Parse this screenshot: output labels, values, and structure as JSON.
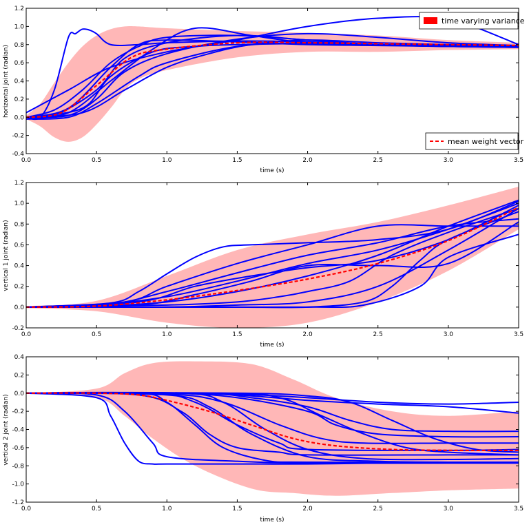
{
  "colors": {
    "trajectory": "#0000ff",
    "variance": "#ffb3b3",
    "variance_legend": "#ff0000",
    "mean": "#ff0000"
  },
  "legend": {
    "variance_label": "time varying variance",
    "mean_label": "mean weight vector"
  },
  "chart_data": [
    {
      "type": "line",
      "ylabel": "horizontal joint (radian)",
      "xlabel": "time (s)",
      "xlim": [
        0,
        3.5
      ],
      "ylim": [
        -0.4,
        1.2
      ],
      "xticks": [
        "0.0",
        "0.5",
        "1.0",
        "1.5",
        "2.0",
        "2.5",
        "3.0",
        "3.5"
      ],
      "yticks": [
        "-0.4",
        "-0.2",
        "0.0",
        "0.2",
        "0.4",
        "0.6",
        "0.8",
        "1.0",
        "1.2"
      ],
      "legend_entries": [
        "time varying variance",
        "mean weight vector"
      ],
      "legend_positions": [
        "top-right",
        "bottom-right"
      ],
      "grid": false,
      "mean": {
        "x": [
          0,
          0.25,
          0.5,
          0.75,
          1.0,
          1.5,
          2.0,
          2.5,
          3.0,
          3.5
        ],
        "y": [
          0.0,
          0.05,
          0.35,
          0.66,
          0.75,
          0.82,
          0.82,
          0.81,
          0.8,
          0.79
        ]
      },
      "variance_band": {
        "x": [
          0,
          0.1,
          0.2,
          0.3,
          0.4,
          0.5,
          0.6,
          0.7,
          0.8,
          1.0,
          1.5,
          2.0,
          2.5,
          3.0,
          3.5
        ],
        "upper": [
          0.02,
          0.15,
          0.38,
          0.6,
          0.78,
          0.9,
          0.97,
          1.0,
          1.0,
          0.98,
          0.95,
          0.93,
          0.9,
          0.85,
          0.82
        ],
        "lower": [
          -0.02,
          -0.1,
          -0.22,
          -0.27,
          -0.22,
          -0.08,
          0.1,
          0.3,
          0.42,
          0.52,
          0.66,
          0.72,
          0.72,
          0.74,
          0.75
        ]
      },
      "trajectories": [
        {
          "x": [
            0,
            0.1,
            0.2,
            0.3,
            0.35,
            0.4,
            0.45,
            0.5,
            0.6,
            0.8,
            1.0,
            1.5,
            2.0,
            2.5,
            3.0,
            3.5
          ],
          "y": [
            0,
            0.0,
            0.3,
            0.88,
            0.92,
            0.97,
            0.96,
            0.92,
            0.8,
            0.8,
            0.82,
            0.84,
            0.83,
            0.8,
            0.78,
            0.78
          ]
        },
        {
          "x": [
            0,
            0.3,
            0.6,
            1.0,
            1.5,
            2.0,
            2.5,
            3.0,
            3.5
          ],
          "y": [
            0.05,
            0.3,
            0.55,
            0.72,
            0.85,
            1.0,
            1.09,
            1.08,
            0.8
          ]
        },
        {
          "x": [
            0,
            0.2,
            0.5,
            0.7,
            1.0,
            1.5,
            2.0,
            2.5,
            3.0,
            3.5
          ],
          "y": [
            0,
            0.02,
            0.3,
            0.65,
            0.82,
            0.9,
            0.85,
            0.8,
            0.78,
            0.77
          ]
        },
        {
          "x": [
            0,
            0.3,
            0.6,
            0.9,
            1.2,
            1.6,
            2.0,
            2.5,
            3.0,
            3.5
          ],
          "y": [
            0,
            0.05,
            0.4,
            0.75,
            0.98,
            0.9,
            0.82,
            0.8,
            0.8,
            0.78
          ]
        },
        {
          "x": [
            0,
            0.3,
            0.5,
            0.8,
            1.0,
            1.5,
            2.0,
            2.5,
            3.0,
            3.5
          ],
          "y": [
            -0.02,
            0.0,
            0.15,
            0.45,
            0.6,
            0.78,
            0.82,
            0.8,
            0.79,
            0.78
          ]
        },
        {
          "x": [
            0,
            0.3,
            0.6,
            0.8,
            1.0,
            1.5,
            2.0,
            2.5,
            3.0,
            3.5
          ],
          "y": [
            0,
            0.1,
            0.55,
            0.8,
            0.85,
            0.83,
            0.8,
            0.79,
            0.78,
            0.78
          ]
        },
        {
          "x": [
            0,
            0.4,
            0.7,
            1.0,
            1.3,
            1.6,
            2.0,
            2.5,
            3.0,
            3.5
          ],
          "y": [
            0,
            0.05,
            0.3,
            0.55,
            0.7,
            0.8,
            0.85,
            0.82,
            0.8,
            0.79
          ]
        },
        {
          "x": [
            0,
            0.2,
            0.4,
            0.6,
            0.8,
            1.0,
            1.5,
            2.0,
            2.5,
            3.0,
            3.5
          ],
          "y": [
            0,
            0.08,
            0.3,
            0.6,
            0.78,
            0.88,
            0.9,
            0.85,
            0.8,
            0.78,
            0.78
          ]
        },
        {
          "x": [
            0,
            0.3,
            0.5,
            0.7,
            1.0,
            1.5,
            2.0,
            2.5,
            3.0,
            3.5
          ],
          "y": [
            0,
            0.02,
            0.2,
            0.5,
            0.7,
            0.86,
            0.92,
            0.88,
            0.82,
            0.79
          ]
        },
        {
          "x": [
            0,
            0.4,
            0.6,
            0.9,
            1.2,
            1.5,
            2.0,
            2.5,
            3.0,
            3.5
          ],
          "y": [
            0,
            0.1,
            0.45,
            0.72,
            0.78,
            0.8,
            0.81,
            0.8,
            0.78,
            0.77
          ]
        }
      ]
    },
    {
      "type": "line",
      "ylabel": "vertical 1 joint (radian)",
      "xlabel": "time (s)",
      "xlim": [
        0,
        3.5
      ],
      "ylim": [
        -0.2,
        1.2
      ],
      "xticks": [
        "0.0",
        "0.5",
        "1.0",
        "1.5",
        "2.0",
        "2.5",
        "3.0",
        "3.5"
      ],
      "yticks": [
        "-0.2",
        "0.0",
        "0.2",
        "0.4",
        "0.6",
        "0.8",
        "1.0",
        "1.2"
      ],
      "grid": false,
      "mean": {
        "x": [
          0,
          0.5,
          1.0,
          1.5,
          2.0,
          2.5,
          3.0,
          3.5
        ],
        "y": [
          0,
          0.01,
          0.07,
          0.16,
          0.27,
          0.42,
          0.64,
          0.96
        ]
      },
      "variance_band": {
        "x": [
          0,
          0.5,
          1.0,
          1.5,
          2.0,
          2.5,
          3.0,
          3.5
        ],
        "upper": [
          0.01,
          0.06,
          0.3,
          0.55,
          0.7,
          0.82,
          0.98,
          1.16
        ],
        "lower": [
          -0.01,
          -0.04,
          -0.15,
          -0.2,
          -0.15,
          0.05,
          0.35,
          0.75
        ]
      },
      "trajectories": [
        {
          "x": [
            0,
            0.6,
            0.8,
            1.0,
            1.2,
            1.4,
            1.6,
            2.0,
            2.5,
            3.0,
            3.5
          ],
          "y": [
            0,
            0.04,
            0.15,
            0.32,
            0.48,
            0.58,
            0.6,
            0.62,
            0.65,
            0.75,
            1.02
          ]
        },
        {
          "x": [
            0,
            0.7,
            1.0,
            1.5,
            2.0,
            2.5,
            3.0,
            3.5
          ],
          "y": [
            0,
            0.05,
            0.2,
            0.42,
            0.6,
            0.78,
            0.78,
            0.78
          ]
        },
        {
          "x": [
            0,
            0.5,
            1.0,
            1.5,
            2.0,
            2.5,
            3.0,
            3.5
          ],
          "y": [
            0,
            0.02,
            0.1,
            0.25,
            0.42,
            0.55,
            0.75,
            1.0
          ]
        },
        {
          "x": [
            0,
            0.5,
            1.0,
            1.5,
            2.0,
            2.5,
            3.0,
            3.5
          ],
          "y": [
            0,
            0.01,
            0.05,
            0.15,
            0.3,
            0.5,
            0.78,
            1.03
          ]
        },
        {
          "x": [
            0,
            0.5,
            1.0,
            1.5,
            2.0,
            2.5,
            3.0,
            3.5
          ],
          "y": [
            0,
            0.0,
            0.0,
            0.02,
            0.05,
            0.2,
            0.55,
            0.95
          ]
        },
        {
          "x": [
            0,
            1.0,
            1.5,
            2.0,
            2.4,
            2.6,
            2.8,
            3.0,
            3.5
          ],
          "y": [
            0,
            0.0,
            0.0,
            0.0,
            0.05,
            0.2,
            0.45,
            0.65,
            0.92
          ]
        },
        {
          "x": [
            0,
            1.0,
            2.0,
            2.4,
            2.8,
            3.0,
            3.5
          ],
          "y": [
            0,
            0.0,
            0.0,
            0.02,
            0.2,
            0.48,
            0.7
          ]
        },
        {
          "x": [
            0,
            0.8,
            1.2,
            1.6,
            2.0,
            2.5,
            3.0,
            3.5
          ],
          "y": [
            0,
            0.05,
            0.2,
            0.3,
            0.38,
            0.45,
            0.65,
            0.98
          ]
        },
        {
          "x": [
            0,
            0.8,
            1.2,
            1.6,
            2.0,
            2.5,
            3.0,
            3.5
          ],
          "y": [
            0,
            0.02,
            0.12,
            0.25,
            0.4,
            0.4,
            0.42,
            0.82
          ]
        },
        {
          "x": [
            0,
            0.6,
            1.0,
            1.5,
            2.0,
            2.5,
            3.0,
            3.5
          ],
          "y": [
            0,
            0.03,
            0.15,
            0.33,
            0.5,
            0.62,
            0.78,
            0.85
          ]
        },
        {
          "x": [
            0,
            1.0,
            1.5,
            1.8,
            2.0,
            2.3,
            2.6,
            3.0,
            3.5
          ],
          "y": [
            0,
            0.02,
            0.05,
            0.1,
            0.15,
            0.25,
            0.5,
            0.72,
            0.95
          ]
        }
      ]
    },
    {
      "type": "line",
      "ylabel": "vertical 2 joint (radian)",
      "xlabel": "time (s)",
      "xlim": [
        0,
        3.5
      ],
      "ylim": [
        -1.2,
        0.4
      ],
      "xticks": [
        "0.0",
        "0.5",
        "1.0",
        "1.5",
        "2.0",
        "2.5",
        "3.0",
        "3.5"
      ],
      "yticks": [
        "-1.2",
        "-1.0",
        "-0.8",
        "-0.6",
        "-0.4",
        "-0.2",
        "0.0",
        "0.2",
        "0.4"
      ],
      "grid": false,
      "mean": {
        "x": [
          0,
          0.5,
          0.8,
          1.0,
          1.3,
          1.6,
          1.9,
          2.2,
          2.6,
          3.0,
          3.5
        ],
        "y": [
          0,
          0.0,
          -0.02,
          -0.08,
          -0.2,
          -0.35,
          -0.5,
          -0.58,
          -0.62,
          -0.63,
          -0.63
        ]
      },
      "variance_band": {
        "x": [
          0,
          0.5,
          0.7,
          0.9,
          1.2,
          1.6,
          1.9,
          2.2,
          2.6,
          3.0,
          3.5
        ],
        "upper": [
          0.0,
          0.05,
          0.22,
          0.33,
          0.35,
          0.32,
          0.15,
          -0.05,
          -0.2,
          -0.25,
          -0.2
        ],
        "lower": [
          0.0,
          -0.05,
          -0.25,
          -0.5,
          -0.8,
          -1.05,
          -1.1,
          -1.13,
          -1.1,
          -1.07,
          -1.05
        ]
      },
      "trajectories": [
        {
          "x": [
            0,
            0.5,
            0.6,
            0.7,
            0.8,
            0.9,
            1.0,
            1.5,
            2.0,
            2.5,
            3.0,
            3.5
          ],
          "y": [
            0,
            -0.05,
            -0.25,
            -0.55,
            -0.75,
            -0.78,
            -0.78,
            -0.78,
            -0.78,
            -0.77,
            -0.77,
            -0.77
          ]
        },
        {
          "x": [
            0,
            0.5,
            0.7,
            0.9,
            1.0,
            1.5,
            2.0,
            3.0,
            3.5
          ],
          "y": [
            0,
            -0.02,
            -0.2,
            -0.55,
            -0.7,
            -0.75,
            -0.77,
            -0.77,
            -0.77
          ]
        },
        {
          "x": [
            0,
            1.0,
            1.5,
            2.0,
            2.5,
            3.0,
            3.5
          ],
          "y": [
            0,
            0.0,
            -0.01,
            -0.05,
            -0.1,
            -0.12,
            -0.1
          ]
        },
        {
          "x": [
            0,
            1.0,
            1.5,
            2.0,
            2.5,
            3.0,
            3.5
          ],
          "y": [
            0,
            0.0,
            -0.02,
            -0.08,
            -0.12,
            -0.15,
            -0.22
          ]
        },
        {
          "x": [
            0,
            0.8,
            1.1,
            1.3,
            1.5,
            1.8,
            2.0,
            3.0,
            3.5
          ],
          "y": [
            0,
            -0.02,
            -0.2,
            -0.45,
            -0.6,
            -0.65,
            -0.68,
            -0.68,
            -0.68
          ]
        },
        {
          "x": [
            0,
            0.9,
            1.2,
            1.5,
            1.8,
            2.0,
            3.0,
            3.5
          ],
          "y": [
            0,
            0.0,
            -0.1,
            -0.35,
            -0.55,
            -0.62,
            -0.63,
            -0.62
          ]
        },
        {
          "x": [
            0,
            1.0,
            1.4,
            1.8,
            2.1,
            2.4,
            3.0,
            3.5
          ],
          "y": [
            0,
            -0.01,
            -0.1,
            -0.35,
            -0.5,
            -0.55,
            -0.55,
            -0.55
          ]
        },
        {
          "x": [
            0,
            1.0,
            1.5,
            2.0,
            2.2,
            2.5,
            3.0,
            3.5
          ],
          "y": [
            0,
            0.0,
            -0.05,
            -0.2,
            -0.35,
            -0.45,
            -0.48,
            -0.48
          ]
        },
        {
          "x": [
            0,
            1.2,
            1.6,
            2.0,
            2.3,
            2.6,
            3.0,
            3.5
          ],
          "y": [
            0,
            0.0,
            -0.05,
            -0.15,
            -0.3,
            -0.4,
            -0.42,
            -0.42
          ]
        },
        {
          "x": [
            0,
            1.0,
            1.3,
            1.6,
            2.0,
            2.5,
            3.0,
            3.5
          ],
          "y": [
            0,
            -0.02,
            -0.15,
            -0.45,
            -0.7,
            -0.75,
            -0.76,
            -0.76
          ]
        },
        {
          "x": [
            0,
            1.1,
            1.4,
            1.7,
            2.0,
            2.4,
            3.0,
            3.5
          ],
          "y": [
            0,
            0.0,
            -0.1,
            -0.4,
            -0.62,
            -0.72,
            -0.73,
            -0.72
          ]
        },
        {
          "x": [
            0,
            0.8,
            1.0,
            1.2,
            1.4,
            1.7,
            2.0,
            3.0,
            3.5
          ],
          "y": [
            0,
            0.0,
            -0.1,
            -0.35,
            -0.6,
            -0.74,
            -0.76,
            -0.76,
            -0.76
          ]
        },
        {
          "x": [
            0,
            1.4,
            1.8,
            2.1,
            2.4,
            2.7,
            3.0,
            3.5
          ],
          "y": [
            0,
            0.0,
            -0.05,
            -0.25,
            -0.45,
            -0.6,
            -0.65,
            -0.68
          ]
        },
        {
          "x": [
            0,
            1.5,
            2.0,
            2.3,
            2.6,
            2.9,
            3.2,
            3.5
          ],
          "y": [
            0,
            0.0,
            -0.03,
            -0.1,
            -0.3,
            -0.5,
            -0.62,
            -0.65
          ]
        }
      ]
    }
  ]
}
